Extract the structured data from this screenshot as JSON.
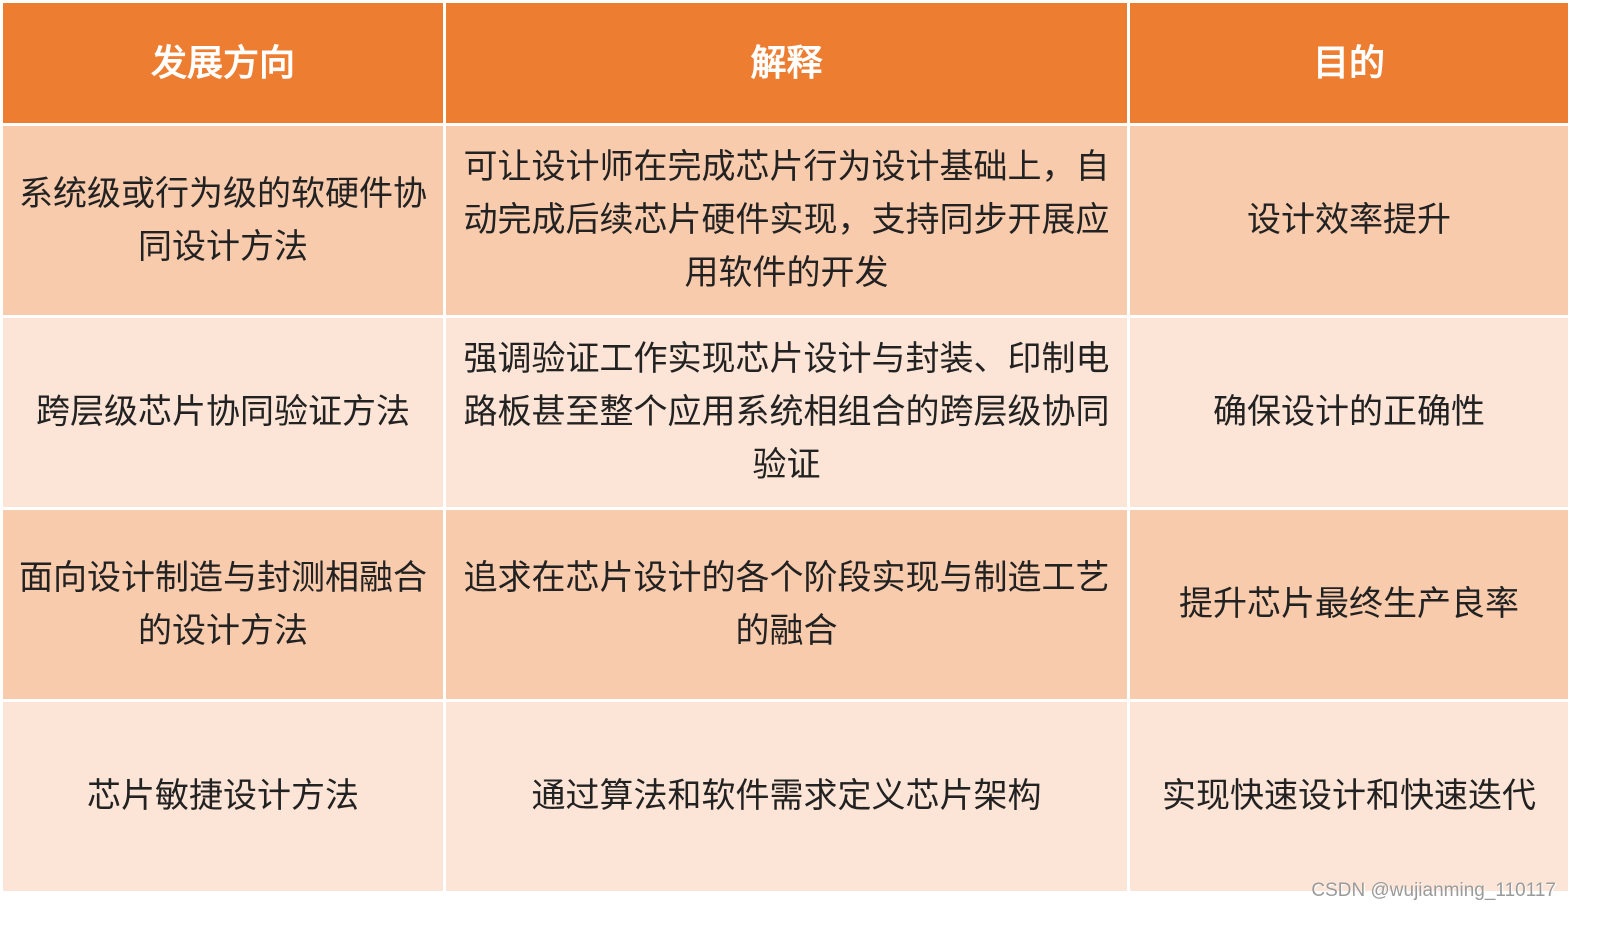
{
  "colors": {
    "header": "#ED7D31",
    "row_odd": "#F8CBAD",
    "row_even": "#FCE4D6"
  },
  "table": {
    "headers": [
      "发展方向",
      "解释",
      "目的"
    ],
    "rows": [
      [
        "系统级或行为级的软硬件协同设计方法",
        "可让设计师在完成芯片行为设计基础上，自动完成后续芯片硬件实现，支持同步开展应用软件的开发",
        "设计效率提升"
      ],
      [
        "跨层级芯片协同验证方法",
        "强调验证工作实现芯片设计与封装、印制电路板甚至整个应用系统相组合的跨层级协同验证",
        "确保设计的正确性"
      ],
      [
        "面向设计制造与封测相融合的设计方法",
        "追求在芯片设计的各个阶段实现与制造工艺的融合",
        "提升芯片最终生产良率"
      ],
      [
        "芯片敏捷设计方法",
        "通过算法和软件需求定义芯片架构",
        "实现快速设计和快速迭代"
      ]
    ]
  },
  "watermark": "CSDN @wujianming_110117"
}
